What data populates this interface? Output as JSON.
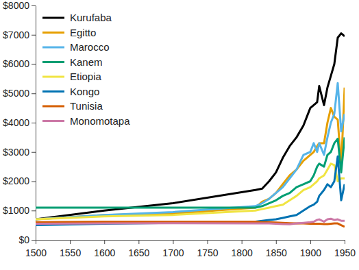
{
  "chart_data": {
    "type": "line",
    "x": [
      1500,
      1600,
      1700,
      1820,
      1830,
      1840,
      1850,
      1860,
      1870,
      1880,
      1890,
      1900,
      1905,
      1910,
      1913,
      1920,
      1925,
      1930,
      1935,
      1940,
      1945,
      1950
    ],
    "series": [
      {
        "name": "Kurufaba",
        "color": "#000000",
        "values": [
          700,
          1000,
          1250,
          1700,
          1750,
          2000,
          2300,
          2800,
          3200,
          3500,
          3900,
          4500,
          4600,
          4700,
          5250,
          4600,
          5200,
          5600,
          6000,
          6900,
          7050,
          6950
        ]
      },
      {
        "name": "Egitto",
        "color": "#e69f00",
        "values": [
          700,
          850,
          900,
          1100,
          1300,
          1400,
          1600,
          1900,
          2200,
          2400,
          2700,
          2900,
          3000,
          3200,
          3300,
          3300,
          4000,
          4500,
          4200,
          4100,
          2500,
          5200
        ]
      },
      {
        "name": "Marocco",
        "color": "#56b4e9",
        "values": [
          700,
          850,
          950,
          1150,
          1250,
          1400,
          1600,
          1800,
          2100,
          2400,
          2900,
          3000,
          3300,
          3000,
          3300,
          2900,
          3500,
          4000,
          4300,
          5350,
          3700,
          4300
        ]
      },
      {
        "name": "Kanem",
        "color": "#009e73",
        "values": [
          1100,
          1100,
          1100,
          1100,
          1150,
          1250,
          1350,
          1500,
          1600,
          1800,
          1900,
          2000,
          2200,
          2500,
          2600,
          2500,
          2900,
          3000,
          3300,
          3450,
          2300,
          3500
        ]
      },
      {
        "name": "Etiopia",
        "color": "#f0e442",
        "values": [
          700,
          800,
          850,
          1000,
          1050,
          1100,
          1150,
          1200,
          1350,
          1500,
          1700,
          1800,
          1900,
          2000,
          2100,
          2200,
          2400,
          2600,
          2550,
          2000,
          2100,
          2100
        ]
      },
      {
        "name": "Kongo",
        "color": "#0072b2",
        "values": [
          500,
          550,
          580,
          620,
          650,
          680,
          700,
          750,
          800,
          850,
          1000,
          1150,
          1200,
          1300,
          1500,
          1700,
          1900,
          1800,
          2000,
          2850,
          1350,
          1900
        ]
      },
      {
        "name": "Tunisia",
        "color": "#d55e00",
        "values": [
          600,
          620,
          620,
          620,
          600,
          600,
          590,
          580,
          570,
          560,
          560,
          550,
          550,
          550,
          550,
          540,
          540,
          550,
          560,
          560,
          500,
          450
        ]
      },
      {
        "name": "Monomotapa",
        "color": "#cc79a7",
        "values": [
          550,
          560,
          570,
          560,
          560,
          560,
          550,
          540,
          530,
          560,
          580,
          600,
          620,
          680,
          700,
          620,
          700,
          720,
          680,
          700,
          650,
          650
        ]
      }
    ],
    "xlim": [
      1500,
      1950
    ],
    "xticks": [
      1500,
      1550,
      1600,
      1650,
      1700,
      1750,
      1800,
      1850,
      1900,
      1950
    ],
    "ylim": [
      0,
      8000
    ],
    "yticks": [
      {
        "value": 0,
        "label": "$0"
      },
      {
        "value": 1000,
        "label": "$1000"
      },
      {
        "value": 2000,
        "label": "$2000"
      },
      {
        "value": 3000,
        "label": "$3000"
      },
      {
        "value": 4000,
        "label": "$4000"
      },
      {
        "value": 5000,
        "label": "$5000"
      },
      {
        "value": 6000,
        "label": "$6000"
      },
      {
        "value": 7000,
        "label": "$7000"
      },
      {
        "value": 8000,
        "label": "$8000"
      }
    ],
    "legend": "upper left",
    "grid": false
  }
}
